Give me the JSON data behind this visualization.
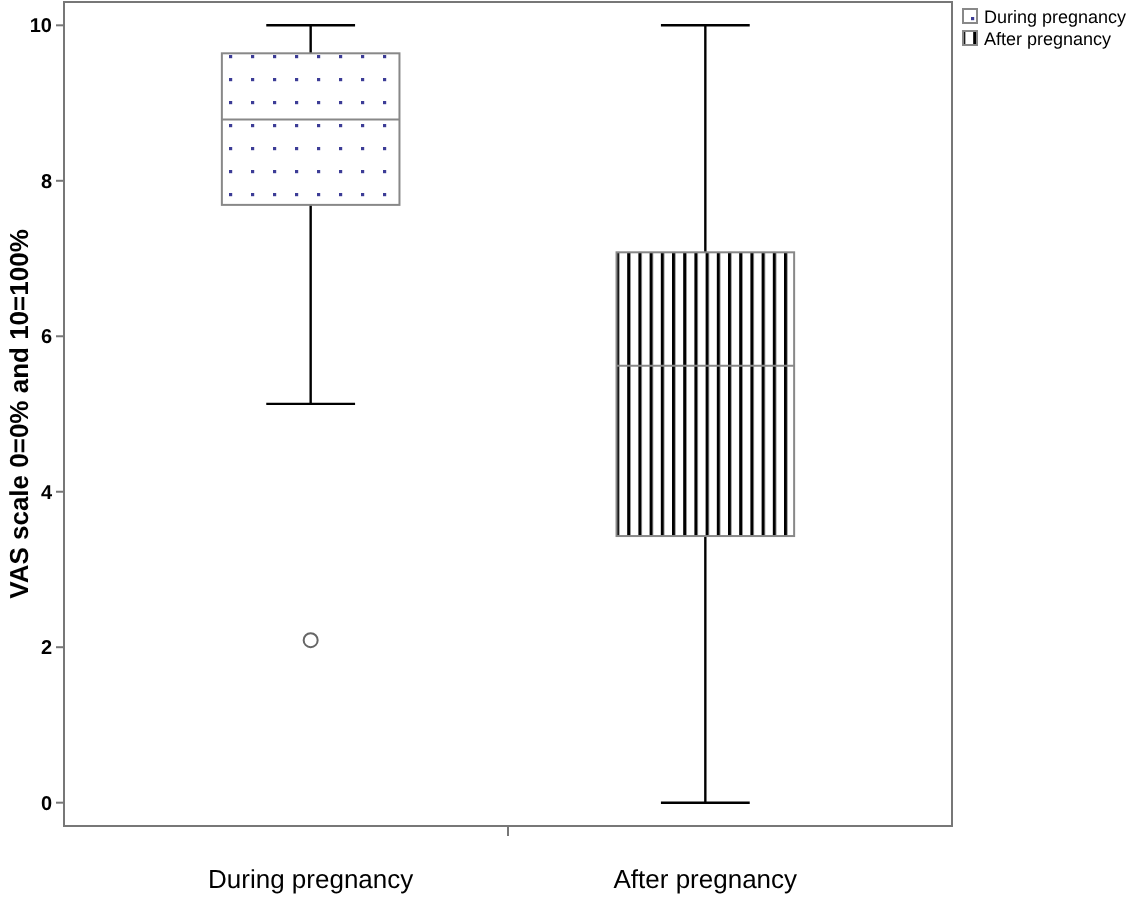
{
  "chart_data": {
    "type": "box",
    "ylabel": "VAS scale 0=0% and 10=100%",
    "categories": [
      "During pregnancy",
      "After pregnancy"
    ],
    "series": [
      {
        "name": "During pregnancy",
        "color": "#888888",
        "boxes": [
          {
            "low": 5.13,
            "q1": 7.69,
            "median": 8.79,
            "q3": 9.64,
            "high": 10,
            "outliers": [
              2.09
            ]
          },
          null
        ]
      },
      {
        "name": "After pregnancy",
        "color": "#888888",
        "boxes": [
          null,
          {
            "low": 0,
            "q1": 3.43,
            "median": 5.62,
            "q3": 7.08,
            "high": 10
          }
        ]
      }
    ],
    "ylim": [
      -0.3,
      10.3
    ],
    "yticks": [
      0,
      2,
      4,
      6,
      8,
      10
    ],
    "legend": "top right",
    "grid": false
  }
}
